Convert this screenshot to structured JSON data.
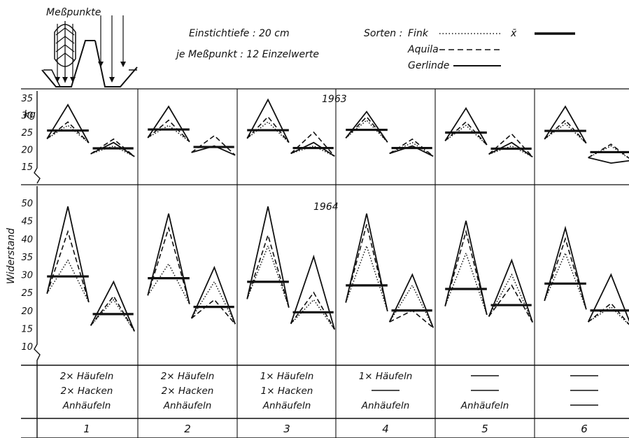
{
  "header": {
    "mess_label": "Meßpunkte",
    "depth": "Einstichtiefe : 20 cm",
    "per_point": "je Meßpunkt : 12 Einzelwerte",
    "sorten_label": "Sorten :",
    "mean_label": "x̄"
  },
  "legend": [
    {
      "name": "Fink",
      "style": "dotted"
    },
    {
      "name": "Aquila",
      "style": "dashed"
    },
    {
      "name": "Gerlinde",
      "style": "solid"
    }
  ],
  "chart_data": {
    "type": "line",
    "ylabel": "Widerstand",
    "unit": "kg",
    "variants": [
      "1",
      "2",
      "3",
      "4",
      "5",
      "6"
    ],
    "treatments": [
      [
        "2× Häufeln",
        "2× Hacken",
        "Anhäufeln"
      ],
      [
        "2× Häufeln",
        "2× Hacken",
        "Anhäufeln"
      ],
      [
        "1× Häufeln",
        "1× Hacken",
        "Anhäufeln"
      ],
      [
        "1× Häufeln",
        "—",
        "Anhäufeln"
      ],
      [
        "—",
        "—",
        "Anhäufeln"
      ],
      [
        "—",
        "—",
        "—"
      ]
    ],
    "panels": [
      {
        "year": "1963",
        "ylim": [
          15,
          35
        ],
        "yticks": [
          15,
          20,
          25,
          30,
          35
        ],
        "points": [
          {
            "fink": {
              "ridge": 27,
              "furrow": 21
            },
            "aquila": {
              "ridge": 28,
              "furrow": 23
            },
            "gerlinde": {
              "ridge": 33,
              "furrow": 22
            },
            "mean": {
              "ridge": 25.5,
              "furrow": 20.3
            }
          },
          {
            "fink": {
              "ridge": 27,
              "furrow": 21
            },
            "aquila": {
              "ridge": 28.5,
              "furrow": 24
            },
            "gerlinde": {
              "ridge": 32.5,
              "furrow": 21
            },
            "mean": {
              "ridge": 25.8,
              "furrow": 20.7
            }
          },
          {
            "fink": {
              "ridge": 28,
              "furrow": 21
            },
            "aquila": {
              "ridge": 29.5,
              "furrow": 25
            },
            "gerlinde": {
              "ridge": 34.5,
              "furrow": 22
            },
            "mean": {
              "ridge": 25.6,
              "furrow": 20.4
            }
          },
          {
            "fink": {
              "ridge": 28.5,
              "furrow": 22
            },
            "aquila": {
              "ridge": 29.5,
              "furrow": 23
            },
            "gerlinde": {
              "ridge": 31,
              "furrow": 21
            },
            "mean": {
              "ridge": 25.7,
              "furrow": 20.4
            }
          },
          {
            "fink": {
              "ridge": 27,
              "furrow": 21
            },
            "aquila": {
              "ridge": 28,
              "furrow": 24.5
            },
            "gerlinde": {
              "ridge": 32,
              "furrow": 22
            },
            "mean": {
              "ridge": 24.9,
              "furrow": 20.2
            }
          },
          {
            "fink": {
              "ridge": 27.5,
              "furrow": 21
            },
            "aquila": {
              "ridge": 28.5,
              "furrow": 21.5
            },
            "gerlinde": {
              "ridge": 32.5,
              "furrow": 16
            },
            "mean": {
              "ridge": 25.4,
              "furrow": 19.2
            }
          }
        ]
      },
      {
        "year": "1964",
        "ylim": [
          10,
          50
        ],
        "yticks": [
          10,
          15,
          20,
          25,
          30,
          35,
          40,
          45,
          50
        ],
        "points": [
          {
            "fink": {
              "ridge": 34,
              "furrow": 23
            },
            "aquila": {
              "ridge": 42,
              "furrow": 24
            },
            "gerlinde": {
              "ridge": 49,
              "furrow": 28
            },
            "mean": {
              "ridge": 29.5,
              "furrow": 19
            }
          },
          {
            "fink": {
              "ridge": 33,
              "furrow": 28
            },
            "aquila": {
              "ridge": 43,
              "furrow": 23
            },
            "gerlinde": {
              "ridge": 47,
              "furrow": 32
            },
            "mean": {
              "ridge": 29,
              "furrow": 21
            }
          },
          {
            "fink": {
              "ridge": 38,
              "furrow": 23
            },
            "aquila": {
              "ridge": 41,
              "furrow": 25
            },
            "gerlinde": {
              "ridge": 49,
              "furrow": 35
            },
            "mean": {
              "ridge": 28,
              "furrow": 19.5
            }
          },
          {
            "fink": {
              "ridge": 38,
              "furrow": 27
            },
            "aquila": {
              "ridge": 44,
              "furrow": 20
            },
            "gerlinde": {
              "ridge": 47,
              "furrow": 30
            },
            "mean": {
              "ridge": 27,
              "furrow": 20
            }
          },
          {
            "fink": {
              "ridge": 36,
              "furrow": 30
            },
            "aquila": {
              "ridge": 42,
              "furrow": 27
            },
            "gerlinde": {
              "ridge": 45,
              "furrow": 34
            },
            "mean": {
              "ridge": 26,
              "furrow": 21.5
            }
          },
          {
            "fink": {
              "ridge": 36,
              "furrow": 21
            },
            "aquila": {
              "ridge": 40,
              "furrow": 22
            },
            "gerlinde": {
              "ridge": 43,
              "furrow": 30
            },
            "mean": {
              "ridge": 27.5,
              "furrow": 20
            }
          }
        ]
      }
    ]
  }
}
